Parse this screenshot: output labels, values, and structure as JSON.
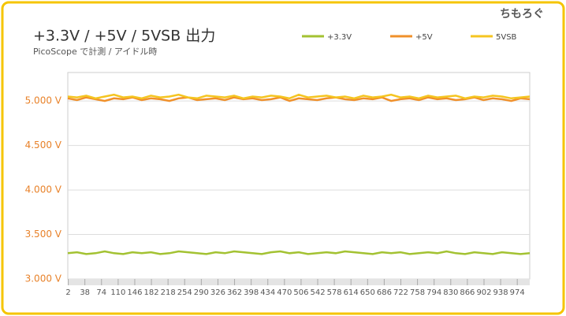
{
  "chart_data": {
    "type": "line",
    "title": "+3.3V / +5V / 5VSB 出力",
    "subtitle": "PicoScope で計測 / アイドル時",
    "logo": "ちもろぐ",
    "x": [
      1,
      21,
      41,
      61,
      81,
      101,
      121,
      141,
      161,
      181,
      201,
      221,
      241,
      261,
      281,
      301,
      321,
      341,
      361,
      381,
      401,
      421,
      441,
      461,
      481,
      501,
      521,
      541,
      561,
      581,
      601,
      621,
      641,
      661,
      681,
      701,
      721,
      741,
      761,
      781,
      801,
      821,
      841,
      861,
      881,
      901,
      921,
      941,
      961,
      981,
      1001
    ],
    "xlim": [
      1,
      1001
    ],
    "xticks": [
      2,
      38,
      74,
      110,
      146,
      182,
      218,
      254,
      290,
      326,
      362,
      398,
      434,
      470,
      506,
      542,
      578,
      614,
      650,
      686,
      722,
      758,
      794,
      830,
      866,
      902,
      938,
      974
    ],
    "ylim": [
      3.0,
      5.32
    ],
    "yticks": [
      {
        "value": 3,
        "label": "3.000 V"
      },
      {
        "value": 3.5,
        "label": "3.500 V"
      },
      {
        "value": 4,
        "label": "4.000 V"
      },
      {
        "value": 4.5,
        "label": "4.500 V"
      },
      {
        "value": 5,
        "label": "5.000 V"
      }
    ],
    "grid": true,
    "series": [
      {
        "name": "+3.3V",
        "color": "#a3c232",
        "values": [
          3.29,
          3.3,
          3.28,
          3.29,
          3.31,
          3.29,
          3.28,
          3.3,
          3.29,
          3.3,
          3.28,
          3.29,
          3.31,
          3.3,
          3.29,
          3.28,
          3.3,
          3.29,
          3.31,
          3.3,
          3.29,
          3.28,
          3.3,
          3.31,
          3.29,
          3.3,
          3.28,
          3.29,
          3.3,
          3.29,
          3.31,
          3.3,
          3.29,
          3.28,
          3.3,
          3.29,
          3.3,
          3.28,
          3.29,
          3.3,
          3.29,
          3.31,
          3.29,
          3.28,
          3.3,
          3.29,
          3.28,
          3.3,
          3.29,
          3.28,
          3.29
        ]
      },
      {
        "name": "+5V",
        "color": "#f0902a",
        "values": [
          5.03,
          5.01,
          5.04,
          5.02,
          5.0,
          5.03,
          5.02,
          5.04,
          5.01,
          5.03,
          5.02,
          5.0,
          5.03,
          5.04,
          5.01,
          5.02,
          5.03,
          5.01,
          5.04,
          5.02,
          5.03,
          5.01,
          5.02,
          5.04,
          5.0,
          5.03,
          5.02,
          5.01,
          5.03,
          5.04,
          5.02,
          5.01,
          5.03,
          5.02,
          5.04,
          5.0,
          5.02,
          5.03,
          5.01,
          5.04,
          5.02,
          5.03,
          5.01,
          5.02,
          5.04,
          5.01,
          5.03,
          5.02,
          5.0,
          5.03,
          5.02
        ]
      },
      {
        "name": "5VSB",
        "color": "#f5c520",
        "values": [
          5.05,
          5.04,
          5.06,
          5.03,
          5.05,
          5.07,
          5.04,
          5.05,
          5.03,
          5.06,
          5.04,
          5.05,
          5.07,
          5.04,
          5.03,
          5.06,
          5.05,
          5.04,
          5.06,
          5.03,
          5.05,
          5.04,
          5.06,
          5.05,
          5.03,
          5.07,
          5.04,
          5.05,
          5.06,
          5.04,
          5.05,
          5.03,
          5.06,
          5.04,
          5.05,
          5.07,
          5.04,
          5.05,
          5.03,
          5.06,
          5.04,
          5.05,
          5.06,
          5.03,
          5.05,
          5.04,
          5.06,
          5.05,
          5.03,
          5.04,
          5.05
        ]
      }
    ]
  }
}
